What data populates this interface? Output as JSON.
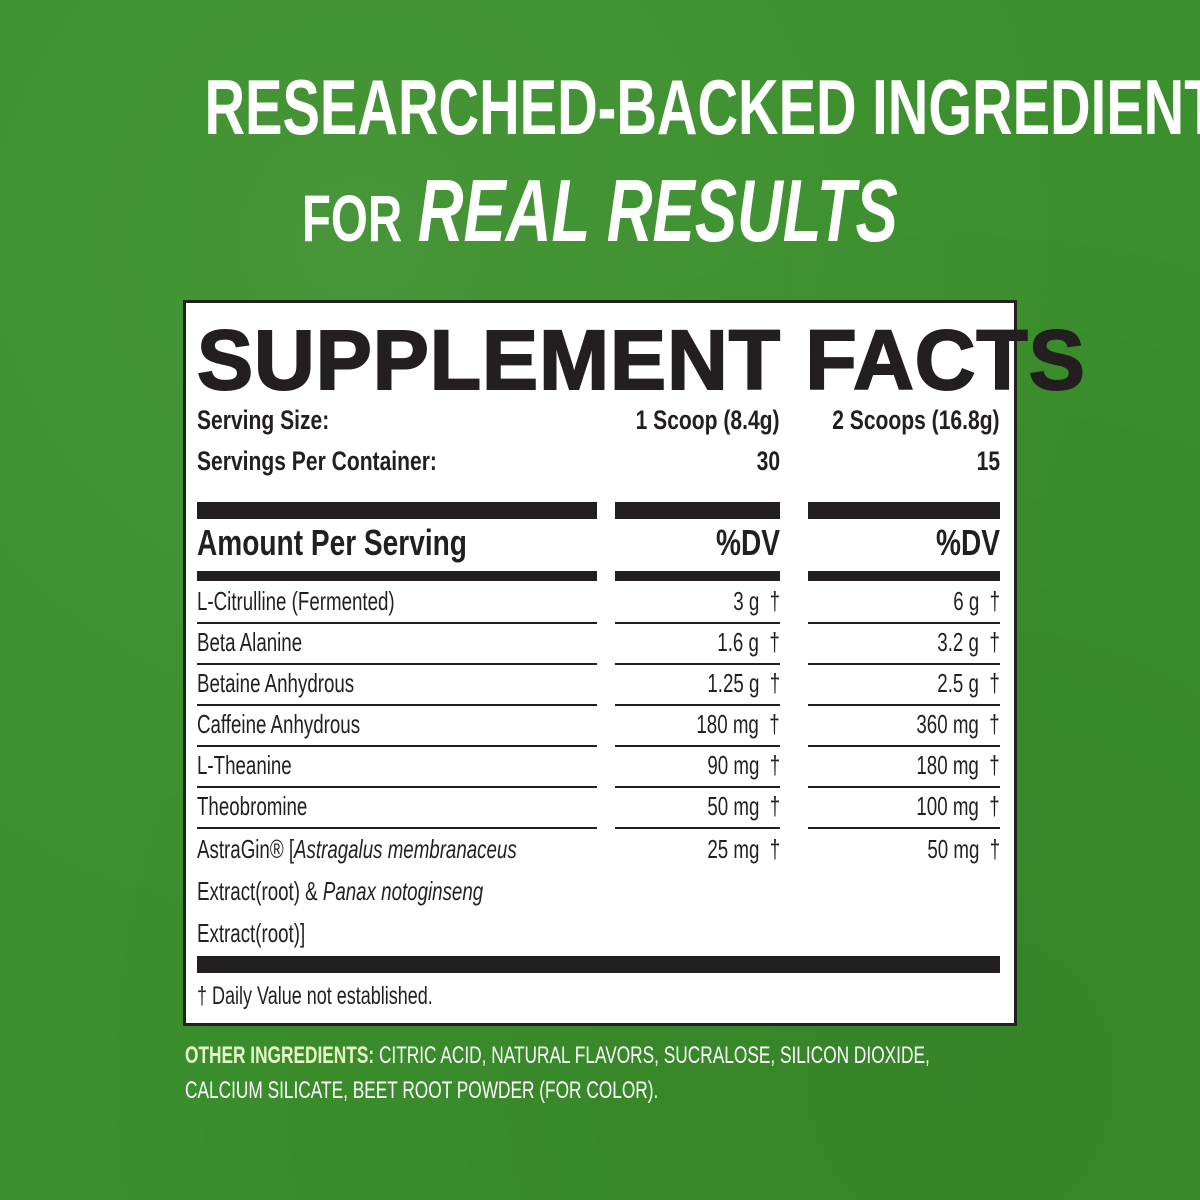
{
  "headline": {
    "line1": "RESEARCHED-BACKED INGREDIENTS",
    "line2_plain": "FOR",
    "line2_italic": "REAL RESULTS"
  },
  "facts": {
    "title": "SUPPLEMENT FACTS",
    "serving_size_label": "Serving Size:",
    "serving_size_1": "1 Scoop (8.4g)",
    "serving_size_2": "2 Scoops (16.8g)",
    "servings_label": "Servings Per Container:",
    "servings_1": "30",
    "servings_2": "15",
    "amount_label": "Amount Per Serving",
    "dv_1": "%DV",
    "dv_2": "%DV",
    "rows": [
      {
        "name": "L-Citrulline (Fermented)",
        "v1": "3 g",
        "v2": "6 g",
        "dv": "†"
      },
      {
        "name": "Beta Alanine",
        "v1": "1.6 g",
        "v2": "3.2 g",
        "dv": "†"
      },
      {
        "name": "Betaine Anhydrous",
        "v1": "1.25 g",
        "v2": "2.5 g",
        "dv": "†"
      },
      {
        "name": "Caffeine Anhydrous",
        "v1": "180 mg",
        "v2": "360 mg",
        "dv": "†"
      },
      {
        "name": "L-Theanine",
        "v1": "90 mg",
        "v2": "180 mg",
        "dv": "†"
      },
      {
        "name": "Theobromine",
        "v1": "50 mg",
        "v2": "100 mg",
        "dv": "†"
      }
    ],
    "astragin": {
      "brand": "AstraGin®",
      "bracket_open": "[",
      "species1": "Astragalus membranaceus",
      "extract1": "Extract(root) &",
      "species2": "Panax notoginseng",
      "extract2": "Extract(root)]",
      "v1": "25 mg",
      "v2": "50 mg",
      "dv": "†"
    },
    "footnote": "† Daily Value not established."
  },
  "other_ingredients": {
    "label": "OTHER INGREDIENTS:",
    "line1": "CITRIC ACID, NATURAL FLAVORS, SUCRALOSE, SILICON DIOXIDE,",
    "line2": "CALCIUM SILICATE, BEET ROOT POWDER (FOR COLOR)."
  },
  "colors": {
    "background": "#3b8f2c",
    "panel": "#ffffff",
    "ink": "#231f20"
  }
}
